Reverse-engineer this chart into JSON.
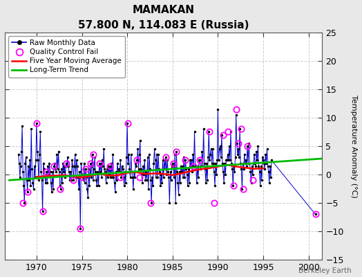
{
  "title": "MAMAKAN",
  "subtitle": "57.800 N, 114.083 E (Russia)",
  "ylabel_right": "Temperature Anomaly (°C)",
  "watermark": "Berkeley Earth",
  "xlim": [
    1966.5,
    2001.5
  ],
  "ylim": [
    -15,
    25
  ],
  "yticks": [
    -15,
    -10,
    -5,
    0,
    5,
    10,
    15,
    20,
    25
  ],
  "xticks": [
    1970,
    1975,
    1980,
    1985,
    1990,
    1995,
    2000
  ],
  "fig_bg_color": "#e8e8e8",
  "plot_bg_color": "#ffffff",
  "grid_color": "#cccccc",
  "raw_line_color": "#0000cc",
  "raw_dot_color": "#000000",
  "qc_fail_color": "#ff00ff",
  "moving_avg_color": "#ff0000",
  "trend_color": "#00bb00",
  "raw_data_x": [
    1968.0,
    1968.083,
    1968.167,
    1968.25,
    1968.333,
    1968.417,
    1968.5,
    1968.583,
    1968.667,
    1968.75,
    1968.833,
    1968.917,
    1969.0,
    1969.083,
    1969.167,
    1969.25,
    1969.333,
    1969.417,
    1969.5,
    1969.583,
    1969.667,
    1969.75,
    1969.833,
    1969.917,
    1970.0,
    1970.083,
    1970.167,
    1970.25,
    1970.333,
    1970.417,
    1970.5,
    1970.583,
    1970.667,
    1970.75,
    1970.833,
    1970.917,
    1971.0,
    1971.083,
    1971.167,
    1971.25,
    1971.333,
    1971.417,
    1971.5,
    1971.583,
    1971.667,
    1971.75,
    1971.833,
    1971.917,
    1972.0,
    1972.083,
    1972.167,
    1972.25,
    1972.333,
    1972.417,
    1972.5,
    1972.583,
    1972.667,
    1972.75,
    1972.833,
    1972.917,
    1973.0,
    1973.083,
    1973.167,
    1973.25,
    1973.333,
    1973.417,
    1973.5,
    1973.583,
    1973.667,
    1973.75,
    1973.833,
    1973.917,
    1974.0,
    1974.083,
    1974.167,
    1974.25,
    1974.333,
    1974.417,
    1974.5,
    1974.583,
    1974.667,
    1974.75,
    1974.833,
    1974.917,
    1975.0,
    1975.083,
    1975.167,
    1975.25,
    1975.333,
    1975.417,
    1975.5,
    1975.583,
    1975.667,
    1975.75,
    1975.833,
    1975.917,
    1976.0,
    1976.083,
    1976.167,
    1976.25,
    1976.333,
    1976.417,
    1976.5,
    1976.583,
    1976.667,
    1976.75,
    1976.833,
    1976.917,
    1977.0,
    1977.083,
    1977.167,
    1977.25,
    1977.333,
    1977.417,
    1977.5,
    1977.583,
    1977.667,
    1977.75,
    1977.833,
    1977.917,
    1978.0,
    1978.083,
    1978.167,
    1978.25,
    1978.333,
    1978.417,
    1978.5,
    1978.583,
    1978.667,
    1978.75,
    1978.833,
    1978.917,
    1979.0,
    1979.083,
    1979.167,
    1979.25,
    1979.333,
    1979.417,
    1979.5,
    1979.583,
    1979.667,
    1979.75,
    1979.833,
    1979.917,
    1980.0,
    1980.083,
    1980.167,
    1980.25,
    1980.333,
    1980.417,
    1980.5,
    1980.583,
    1980.667,
    1980.75,
    1980.833,
    1980.917,
    1981.0,
    1981.083,
    1981.167,
    1981.25,
    1981.333,
    1981.417,
    1981.5,
    1981.583,
    1981.667,
    1981.75,
    1981.833,
    1981.917,
    1982.0,
    1982.083,
    1982.167,
    1982.25,
    1982.333,
    1982.417,
    1982.5,
    1982.583,
    1982.667,
    1982.75,
    1982.833,
    1982.917,
    1983.0,
    1983.083,
    1983.167,
    1983.25,
    1983.333,
    1983.417,
    1983.5,
    1983.583,
    1983.667,
    1983.75,
    1983.833,
    1983.917,
    1984.0,
    1984.083,
    1984.167,
    1984.25,
    1984.333,
    1984.417,
    1984.5,
    1984.583,
    1984.667,
    1984.75,
    1984.833,
    1984.917,
    1985.0,
    1985.083,
    1985.167,
    1985.25,
    1985.333,
    1985.417,
    1985.5,
    1985.583,
    1985.667,
    1985.75,
    1985.833,
    1985.917,
    1986.0,
    1986.083,
    1986.167,
    1986.25,
    1986.333,
    1986.417,
    1986.5,
    1986.583,
    1986.667,
    1986.75,
    1986.833,
    1986.917,
    1987.0,
    1987.083,
    1987.167,
    1987.25,
    1987.333,
    1987.417,
    1987.5,
    1987.583,
    1987.667,
    1987.75,
    1987.833,
    1987.917,
    1988.0,
    1988.083,
    1988.167,
    1988.25,
    1988.333,
    1988.417,
    1988.5,
    1988.583,
    1988.667,
    1988.75,
    1988.833,
    1988.917,
    1989.0,
    1989.083,
    1989.167,
    1989.25,
    1989.333,
    1989.417,
    1989.5,
    1989.583,
    1989.667,
    1989.75,
    1989.833,
    1989.917,
    1990.0,
    1990.083,
    1990.167,
    1990.25,
    1990.333,
    1990.417,
    1990.5,
    1990.583,
    1990.667,
    1990.75,
    1990.833,
    1990.917,
    1991.0,
    1991.083,
    1991.167,
    1991.25,
    1991.333,
    1991.417,
    1991.5,
    1991.583,
    1991.667,
    1991.75,
    1991.833,
    1991.917,
    1992.0,
    1992.083,
    1992.167,
    1992.25,
    1992.333,
    1992.417,
    1992.5,
    1992.583,
    1992.667,
    1992.75,
    1992.833,
    1992.917,
    1993.0,
    1993.083,
    1993.167,
    1993.25,
    1993.333,
    1993.417,
    1993.5,
    1993.583,
    1993.667,
    1993.75,
    1993.833,
    1993.917,
    1994.0,
    1994.083,
    1994.167,
    1994.25,
    1994.333,
    1994.417,
    1994.5,
    1994.583,
    1994.667,
    1994.75,
    1994.833,
    1994.917,
    1995.0,
    1995.083,
    1995.167,
    1995.25,
    1995.333,
    1995.417,
    1995.5,
    1995.583,
    1995.667,
    1995.75,
    1995.833,
    1995.917,
    2000.75
  ],
  "raw_data_y": [
    3.5,
    2.0,
    -0.5,
    1.5,
    4.0,
    8.5,
    0.5,
    -2.0,
    -5.0,
    2.0,
    3.0,
    -1.0,
    -3.0,
    1.5,
    -1.0,
    2.5,
    -2.0,
    8.0,
    1.0,
    -1.5,
    -2.5,
    1.5,
    -0.5,
    2.5,
    9.0,
    4.0,
    2.5,
    -1.0,
    3.5,
    7.5,
    0.5,
    -1.0,
    -6.5,
    2.0,
    1.0,
    -0.5,
    -1.5,
    0.5,
    -1.5,
    1.5,
    0.0,
    2.0,
    0.5,
    -1.5,
    -3.0,
    0.5,
    -2.5,
    1.5,
    2.0,
    1.0,
    0.5,
    3.5,
    1.0,
    4.0,
    0.5,
    -2.0,
    -2.5,
    1.0,
    -1.5,
    2.0,
    0.5,
    1.5,
    -0.5,
    2.0,
    1.5,
    3.0,
    1.5,
    0.5,
    -1.0,
    0.5,
    -1.0,
    2.5,
    1.5,
    -1.0,
    1.5,
    3.5,
    -0.5,
    2.5,
    1.5,
    -0.5,
    -2.5,
    0.5,
    -9.5,
    2.0,
    0.0,
    -0.5,
    -1.0,
    2.0,
    -1.5,
    1.0,
    -0.5,
    -2.5,
    -4.0,
    1.0,
    -2.0,
    2.0,
    -0.5,
    1.5,
    3.5,
    -1.0,
    1.0,
    3.0,
    0.5,
    -1.0,
    -2.0,
    0.5,
    -2.0,
    2.0,
    0.5,
    2.0,
    -0.5,
    2.5,
    1.5,
    4.5,
    1.0,
    0.5,
    -1.5,
    1.0,
    -0.5,
    1.5,
    0.0,
    1.5,
    -0.5,
    2.0,
    -0.5,
    3.5,
    -0.5,
    -1.5,
    -3.0,
    0.5,
    -1.0,
    2.0,
    0.5,
    1.0,
    0.5,
    2.5,
    -0.5,
    1.5,
    1.0,
    -0.5,
    -2.0,
    0.5,
    -1.5,
    3.0,
    9.0,
    2.0,
    3.5,
    1.0,
    -0.5,
    3.5,
    0.5,
    -0.5,
    -2.5,
    0.5,
    -0.5,
    2.0,
    1.5,
    2.5,
    4.5,
    1.0,
    3.5,
    6.0,
    1.0,
    0.0,
    -1.5,
    1.5,
    0.0,
    2.5,
    -1.0,
    0.5,
    -1.0,
    3.0,
    -2.5,
    3.5,
    1.0,
    -1.0,
    -5.0,
    -0.5,
    -2.0,
    2.0,
    4.5,
    2.5,
    -0.5,
    3.5,
    -0.5,
    3.5,
    1.0,
    0.5,
    -2.0,
    0.0,
    -1.5,
    2.5,
    -0.5,
    2.5,
    1.0,
    3.0,
    0.0,
    2.5,
    0.5,
    -0.5,
    -5.0,
    0.5,
    -1.0,
    1.5,
    2.0,
    1.5,
    -0.5,
    3.5,
    -5.0,
    4.0,
    0.5,
    -1.5,
    -3.5,
    0.5,
    -1.5,
    1.5,
    0.5,
    1.5,
    -0.5,
    3.0,
    -0.5,
    2.5,
    1.0,
    0.0,
    -2.0,
    1.0,
    -1.5,
    2.5,
    1.5,
    2.5,
    0.5,
    3.5,
    1.5,
    7.5,
    1.5,
    1.5,
    -1.5,
    1.5,
    -0.5,
    2.5,
    2.5,
    1.0,
    1.5,
    4.0,
    1.5,
    8.0,
    2.0,
    1.0,
    -1.5,
    2.0,
    -1.0,
    3.0,
    7.5,
    2.5,
    3.5,
    4.5,
    2.0,
    4.5,
    2.0,
    0.5,
    -2.0,
    2.0,
    0.0,
    2.5,
    11.5,
    2.5,
    4.5,
    5.0,
    3.0,
    7.0,
    2.0,
    0.5,
    -1.5,
    2.0,
    0.0,
    2.5,
    2.5,
    3.5,
    2.5,
    5.0,
    2.5,
    7.5,
    2.0,
    1.0,
    -2.0,
    1.5,
    0.5,
    3.0,
    10.5,
    5.5,
    3.5,
    4.5,
    3.0,
    8.0,
    2.0,
    1.0,
    -2.5,
    2.0,
    1.0,
    3.5,
    2.0,
    2.5,
    1.5,
    5.0,
    2.0,
    5.5,
    2.0,
    0.5,
    -1.5,
    1.5,
    0.0,
    2.0,
    3.5,
    2.0,
    1.5,
    4.0,
    2.5,
    5.0,
    1.5,
    0.5,
    -2.0,
    1.5,
    -1.0,
    3.0,
    2.5,
    2.0,
    1.0,
    3.5,
    2.0,
    4.5,
    1.5,
    0.5,
    -1.5,
    1.5,
    -0.5,
    2.5,
    -7.0
  ],
  "qc_fail_x": [
    1968.5,
    1969.0,
    1970.0,
    1970.667,
    1971.083,
    1971.917,
    1972.583,
    1973.25,
    1974.083,
    1974.833,
    1975.083,
    1975.417,
    1975.917,
    1976.25,
    1976.917,
    1978.083,
    1979.25,
    1980.083,
    1981.083,
    1981.333,
    1982.583,
    1984.25,
    1985.083,
    1985.417,
    1986.417,
    1987.333,
    1988.0,
    1989.083,
    1989.583,
    1990.583,
    1991.083,
    1991.75,
    1992.0,
    1992.25,
    1992.583,
    1992.75,
    1993.25,
    1993.833,
    2000.75
  ],
  "qc_fail_y": [
    -5.0,
    -3.0,
    9.0,
    -6.5,
    0.5,
    1.5,
    -2.5,
    2.0,
    -1.0,
    -9.5,
    -0.5,
    1.0,
    2.0,
    3.5,
    2.0,
    1.5,
    -0.5,
    9.0,
    2.5,
    -0.5,
    -5.0,
    3.0,
    2.0,
    4.0,
    2.5,
    1.5,
    2.5,
    7.5,
    -5.0,
    7.0,
    7.5,
    -2.0,
    11.5,
    5.5,
    8.0,
    -2.5,
    5.0,
    -1.0,
    -7.0
  ],
  "moving_avg_x": [
    1970.0,
    1971.0,
    1972.0,
    1973.0,
    1974.0,
    1975.0,
    1976.0,
    1977.0,
    1978.0,
    1979.0,
    1980.0,
    1981.0,
    1982.0,
    1983.0,
    1984.0,
    1985.0,
    1986.0,
    1987.0,
    1988.0,
    1989.0,
    1990.0,
    1991.0,
    1992.0,
    1993.0,
    1994.0,
    1995.0
  ],
  "moving_avg_y": [
    -0.4,
    -0.3,
    -0.2,
    -0.1,
    -0.3,
    -0.5,
    -0.2,
    0.1,
    -0.2,
    -0.1,
    0.3,
    0.4,
    0.1,
    0.2,
    0.1,
    -0.1,
    0.2,
    0.6,
    0.9,
    1.1,
    1.4,
    1.7,
    1.4,
    1.2,
    1.0,
    1.1
  ],
  "trend_x": [
    1967.0,
    2001.5
  ],
  "trend_y": [
    -1.0,
    2.8
  ],
  "legend_labels": [
    "Raw Monthly Data",
    "Quality Control Fail",
    "Five Year Moving Average",
    "Long-Term Trend"
  ]
}
